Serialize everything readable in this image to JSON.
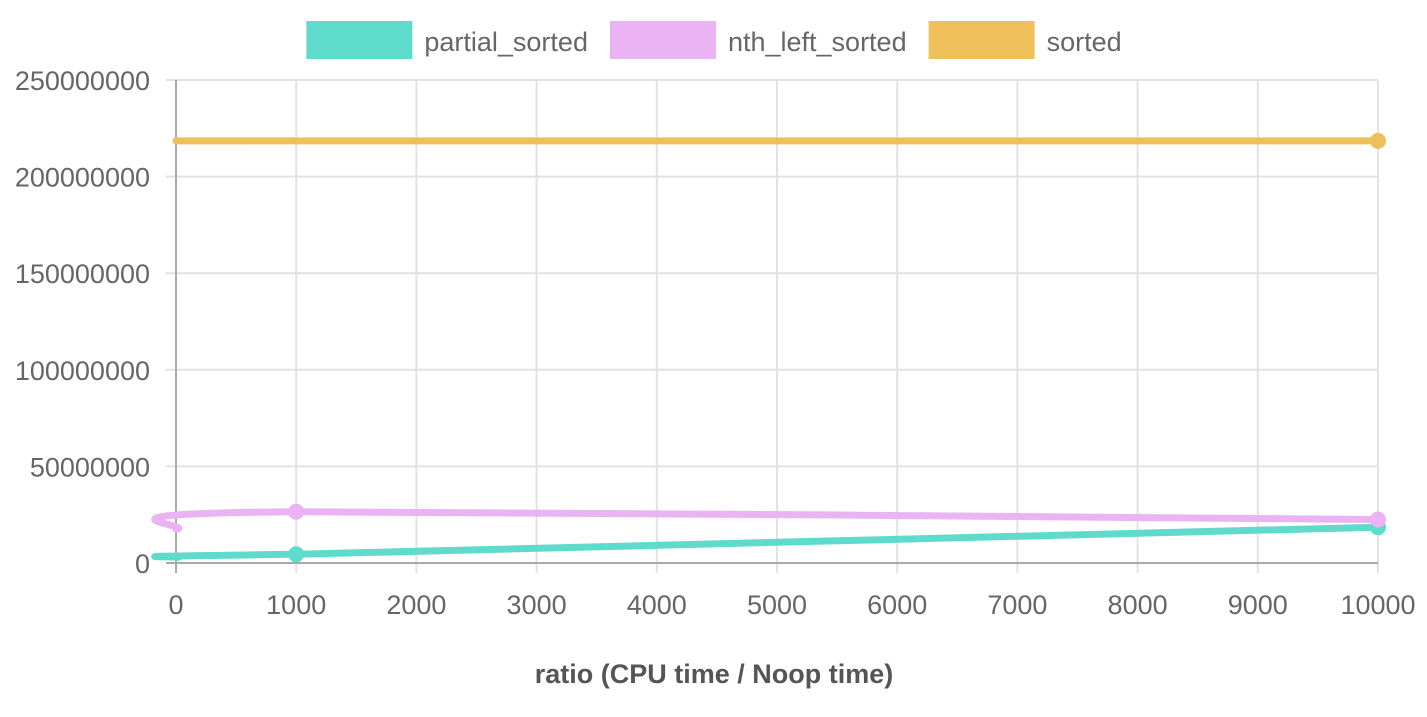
{
  "chart_data": {
    "type": "line",
    "title": "",
    "xlabel": "ratio (CPU time / Noop time)",
    "ylabel": "",
    "xlim": [
      0,
      10000
    ],
    "ylim": [
      0,
      250000000
    ],
    "x_ticks": [
      0,
      1000,
      2000,
      3000,
      4000,
      5000,
      6000,
      7000,
      8000,
      9000,
      10000
    ],
    "y_ticks": [
      0,
      50000000,
      100000000,
      150000000,
      200000000,
      250000000
    ],
    "x_tick_labels": [
      "0",
      "1000",
      "2000",
      "3000",
      "4000",
      "5000",
      "6000",
      "7000",
      "8000",
      "9000",
      "10000"
    ],
    "y_tick_labels": [
      "0",
      "50000000",
      "100000000",
      "150000000",
      "200000000",
      "250000000"
    ],
    "grid": true,
    "legend_position": "top-center",
    "series": [
      {
        "name": "partial_sorted",
        "color": "#5fdbcc",
        "x": [
          0,
          1000,
          10000
        ],
        "y": [
          3000000,
          4500000,
          18500000
        ]
      },
      {
        "name": "nth_left_sorted",
        "color": "#e9b3f4",
        "x": [
          0,
          1000,
          10000
        ],
        "y": [
          17500000,
          26500000,
          22500000
        ]
      },
      {
        "name": "sorted",
        "color": "#efc05a",
        "x": [
          0,
          10000
        ],
        "y": [
          218500000,
          218500000
        ]
      }
    ]
  }
}
